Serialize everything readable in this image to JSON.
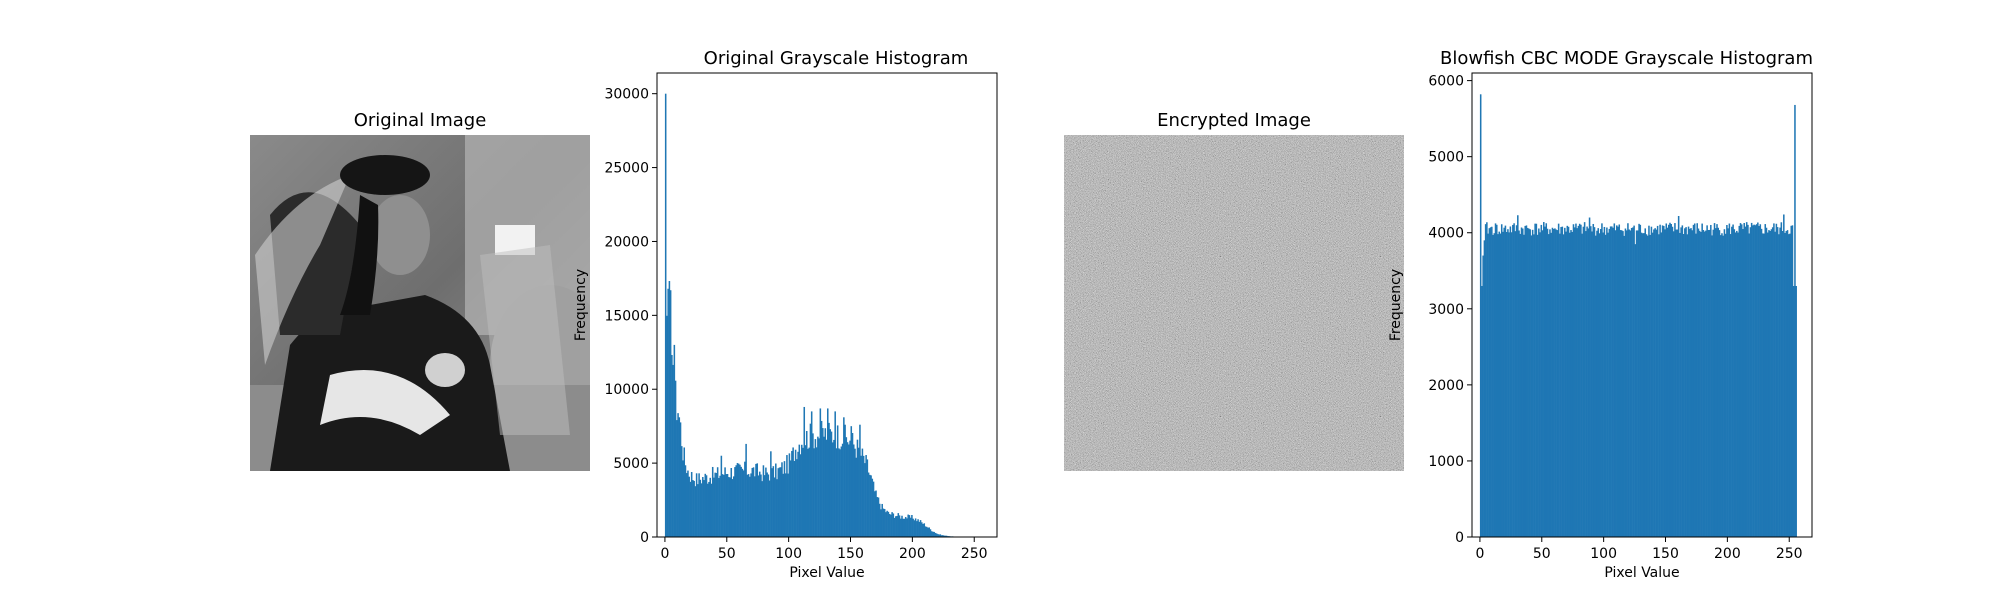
{
  "panels": {
    "original_image": {
      "title": "Original Image"
    },
    "encrypted_image": {
      "title": "Encrypted Image"
    }
  },
  "colors": {
    "bar": "#1f77b4"
  },
  "chart_data": [
    {
      "type": "bar",
      "title": "Original Grayscale Histogram",
      "xlabel": "Pixel Value",
      "ylabel": "Frequency",
      "xlim": [
        -6.4,
        268.4
      ],
      "ylim": [
        0,
        31400
      ],
      "xticks": [
        0,
        50,
        100,
        150,
        200,
        250
      ],
      "yticks": [
        0,
        5000,
        10000,
        15000,
        20000,
        25000,
        30000
      ],
      "profile": [
        [
          0,
          30000
        ],
        [
          1,
          13500
        ],
        [
          2,
          16800
        ],
        [
          3,
          15500
        ],
        [
          4,
          16700
        ],
        [
          5,
          14000
        ],
        [
          6,
          12000
        ],
        [
          7,
          11000
        ],
        [
          8,
          9500
        ],
        [
          9,
          8800
        ],
        [
          10,
          8700
        ],
        [
          12,
          7500
        ],
        [
          14,
          5800
        ],
        [
          16,
          5000
        ],
        [
          18,
          4500
        ],
        [
          20,
          4200
        ],
        [
          25,
          3900
        ],
        [
          30,
          4000
        ],
        [
          40,
          4200
        ],
        [
          50,
          4400
        ],
        [
          60,
          4500
        ],
        [
          70,
          4500
        ],
        [
          80,
          4300
        ],
        [
          90,
          4400
        ],
        [
          100,
          5000
        ],
        [
          105,
          6000
        ],
        [
          110,
          6600
        ],
        [
          120,
          6900
        ],
        [
          130,
          7000
        ],
        [
          140,
          6900
        ],
        [
          150,
          6500
        ],
        [
          155,
          6000
        ],
        [
          160,
          5300
        ],
        [
          163,
          4800
        ],
        [
          166,
          4000
        ],
        [
          170,
          2800
        ],
        [
          175,
          2000
        ],
        [
          180,
          1600
        ],
        [
          190,
          1400
        ],
        [
          200,
          1300
        ],
        [
          205,
          1100
        ],
        [
          210,
          800
        ],
        [
          215,
          450
        ],
        [
          220,
          200
        ],
        [
          225,
          100
        ],
        [
          230,
          50
        ],
        [
          235,
          20
        ],
        [
          240,
          5
        ],
        [
          245,
          2
        ],
        [
          255,
          0
        ]
      ],
      "spikes": [
        [
          0,
          30000
        ],
        [
          2,
          16800
        ],
        [
          4,
          16700
        ],
        [
          7,
          13000
        ],
        [
          45,
          5500
        ],
        [
          65,
          6300
        ],
        [
          85,
          5800
        ],
        [
          112,
          8800
        ],
        [
          118,
          8500
        ],
        [
          125,
          8700
        ],
        [
          131,
          8700
        ],
        [
          137,
          8500
        ],
        [
          144,
          8100
        ],
        [
          150,
          7500
        ],
        [
          157,
          7600
        ]
      ]
    },
    {
      "type": "bar",
      "title": "Blowfish CBC MODE Grayscale Histogram",
      "xlabel": "Pixel Value",
      "ylabel": "Frequency",
      "xlim": [
        -6.4,
        268.4
      ],
      "ylim": [
        0,
        6100
      ],
      "xticks": [
        0,
        50,
        100,
        150,
        200,
        250
      ],
      "yticks": [
        0,
        1000,
        2000,
        3000,
        4000,
        5000,
        6000
      ],
      "profile": [
        [
          0,
          5820
        ],
        [
          1,
          3300
        ],
        [
          2,
          3700
        ],
        [
          3,
          3900
        ],
        [
          4,
          4050
        ],
        [
          255,
          4050
        ]
      ],
      "spikes": [
        [
          0,
          5820
        ],
        [
          1,
          3300
        ],
        [
          2,
          3700
        ],
        [
          3,
          3900
        ],
        [
          253,
          3300
        ],
        [
          254,
          5680
        ],
        [
          255,
          3300
        ],
        [
          30,
          4230
        ],
        [
          88,
          4200
        ],
        [
          125,
          3850
        ],
        [
          160,
          4220
        ],
        [
          245,
          4240
        ]
      ]
    }
  ]
}
